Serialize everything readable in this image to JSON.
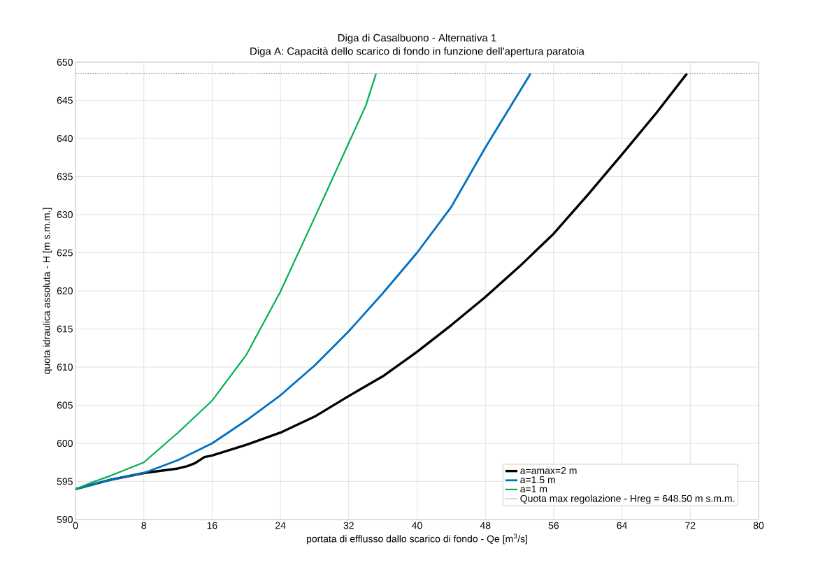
{
  "chart_data": {
    "type": "line",
    "title": "Diga di Casalbuono - Alternativa 1",
    "subtitle": "Diga A: Capacità dello scarico di fondo in funzione dell'apertura paratoia",
    "xlabel": "portata di efflusso dallo scarico di fondo  - Qe [m$^{3}$/s]",
    "ylabel": "quota idraulica assoluta - H [m s.m.m.]",
    "xlim": [
      0,
      80
    ],
    "xticks": [
      0,
      8,
      16,
      24,
      32,
      40,
      48,
      56,
      64,
      72,
      80
    ],
    "ylim": [
      590,
      650
    ],
    "yticks": [
      590,
      595,
      600,
      605,
      610,
      615,
      620,
      625,
      630,
      635,
      640,
      645,
      650
    ],
    "grid": true,
    "legend": "bottom right",
    "line_style": "solid",
    "series": [
      {
        "name": "a=amax=2 m",
        "color": "#000000",
        "x": [
          0,
          4,
          8,
          12,
          13.1,
          14,
          15.1,
          16,
          20,
          24,
          28,
          32,
          36,
          40,
          44,
          48,
          52,
          56,
          60,
          64,
          68,
          71.6
        ],
        "values": [
          594,
          595.2,
          596.1,
          596.7,
          597.0,
          597.4,
          598.2,
          598.4,
          599.8,
          601.4,
          603.5,
          606.2,
          608.8,
          612.0,
          615.5,
          619.2,
          623.2,
          627.5,
          632.6,
          637.9,
          643.3,
          648.5
        ]
      },
      {
        "name": "a=1.5 m",
        "color": "#0070c0",
        "x": [
          0,
          4,
          8,
          12,
          16,
          20,
          24,
          28,
          32,
          36,
          40,
          44,
          48,
          53.3
        ],
        "values": [
          594,
          595.2,
          596.1,
          597.8,
          600.0,
          603.0,
          606.3,
          610.2,
          614.7,
          619.7,
          625.0,
          631.0,
          638.8,
          648.5
        ]
      },
      {
        "name": "a=1 m",
        "color": "#00b050",
        "x": [
          0,
          2,
          4,
          8,
          12,
          16,
          20,
          24,
          28,
          30,
          32,
          34,
          35.2
        ],
        "values": [
          594,
          594.9,
          595.7,
          597.5,
          601.4,
          605.6,
          611.6,
          619.9,
          629.6,
          634.5,
          639.4,
          644.3,
          648.5
        ]
      }
    ],
    "ref_lines": [
      {
        "axis": "y",
        "value": 648.5,
        "label": "Quota max regolazione - Hreg = 648.50 m s.m.m.",
        "color": "#808080",
        "line_style": "dotted"
      }
    ]
  }
}
